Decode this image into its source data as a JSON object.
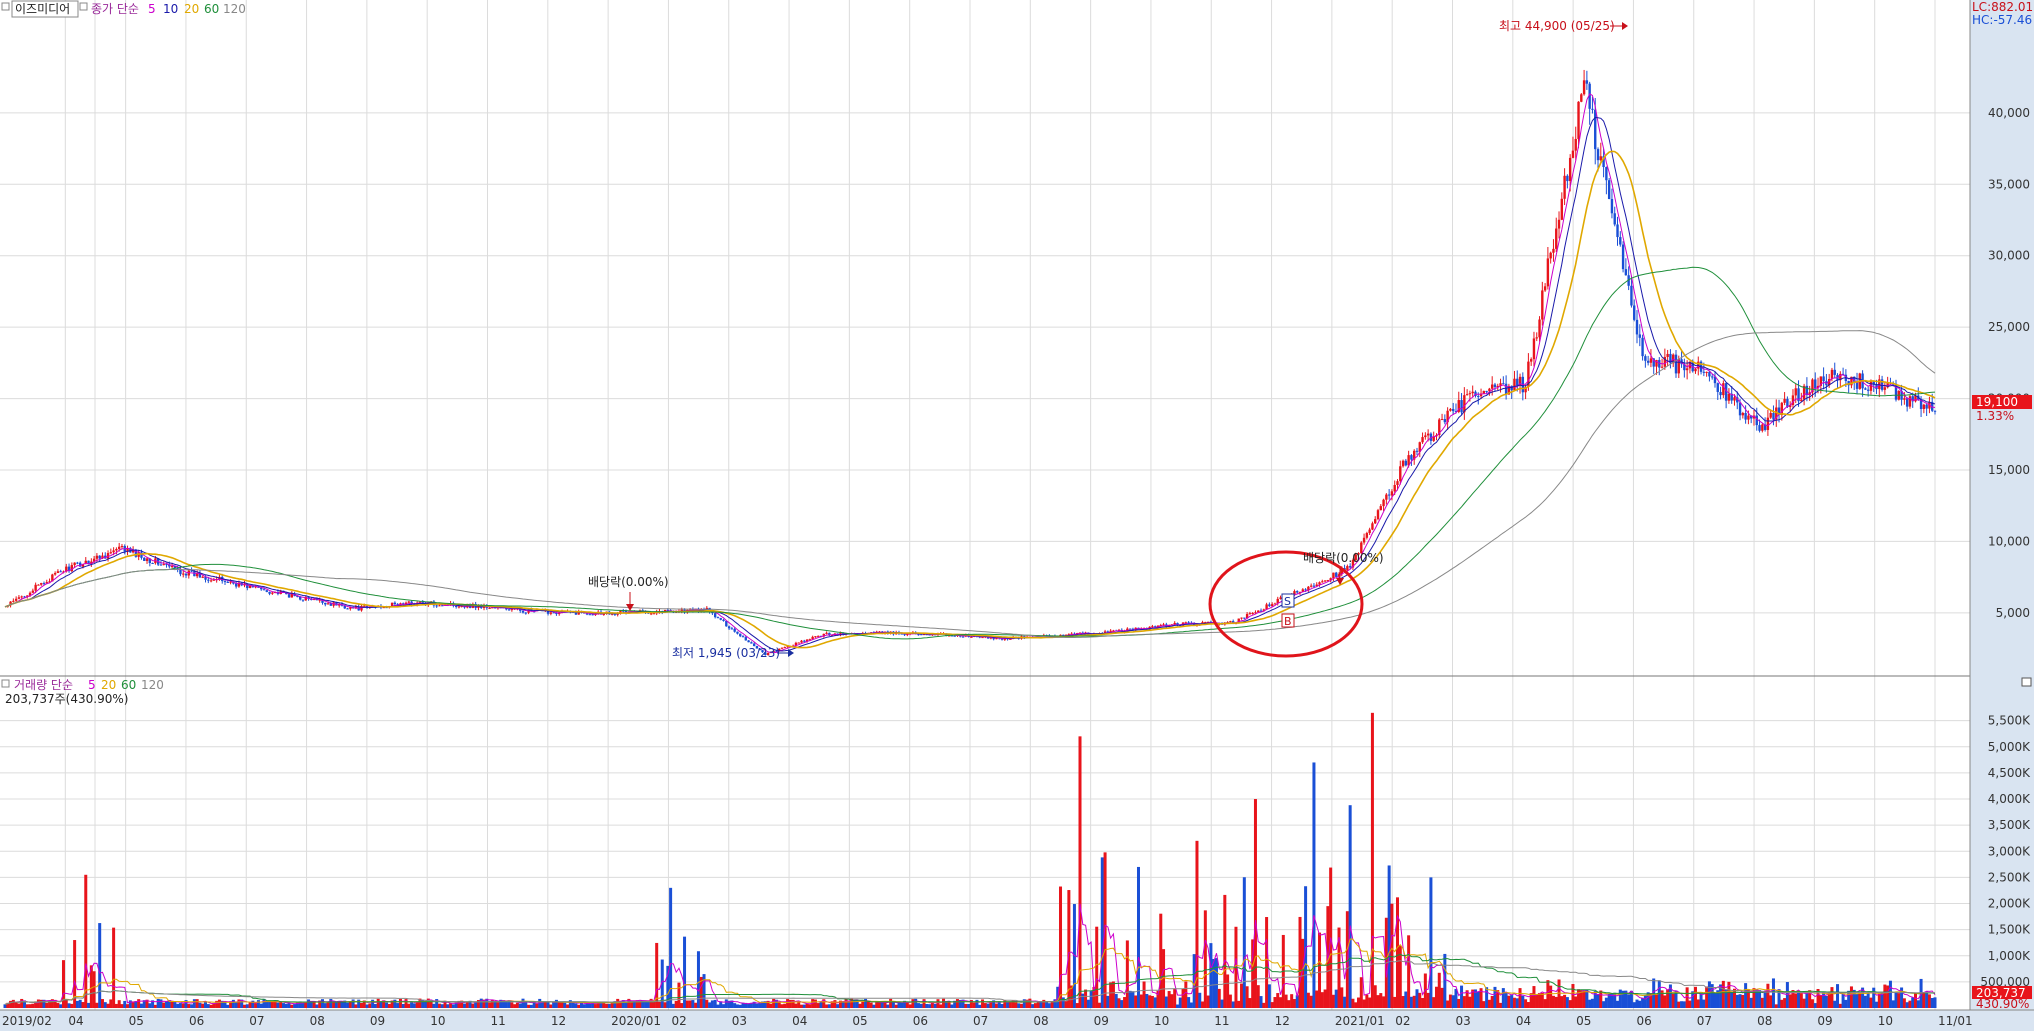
{
  "header": {
    "stock_name": "이즈미디어",
    "price_legend_prefix": "종가 단순",
    "ma_periods": [
      "5",
      "10",
      "20",
      "60",
      "120"
    ],
    "ma_colors": [
      "#cc00cc",
      "#1a1aaa",
      "#e0a800",
      "#1f8f3a",
      "#888888"
    ],
    "lc_label": "LC:882.01",
    "hc_label": "HC:-57.46"
  },
  "volume_header": {
    "legend_prefix": "거래량 단순",
    "ma_periods": [
      "5",
      "20",
      "60",
      "120"
    ],
    "ma_colors": [
      "#cc00cc",
      "#e0a800",
      "#1f8f3a",
      "#888888"
    ],
    "current_volume": "203,737주(430.90%)"
  },
  "annotations": {
    "high": "최고 44,900 (05/25)",
    "low": "최저 1,945 (03/23)",
    "dividend1": "배당락(0.00%)",
    "dividend2": "배당락(0.00%)",
    "signal_s": "S",
    "signal_b": "B"
  },
  "current": {
    "price": "19,100",
    "change": "1.33%",
    "volume": "203,737",
    "volume_pct": "430.90%"
  },
  "colors": {
    "up": "#e8141b",
    "down": "#1a4fd6",
    "grid": "#dcdcdc",
    "axis_bg": "#d9e4f1",
    "highlight": "#e8141b",
    "circle": "#e0141b"
  },
  "chart_data": {
    "type": "candlestick",
    "x_tick_labels": [
      "2019/02",
      "04",
      "05",
      "06",
      "07",
      "08",
      "09",
      "10",
      "11",
      "12",
      "2020/01",
      "02",
      "03",
      "04",
      "05",
      "06",
      "07",
      "08",
      "09",
      "10",
      "11",
      "12",
      "2021/01",
      "02",
      "03",
      "04",
      "05",
      "06",
      "07",
      "08",
      "09",
      "10",
      "11/01"
    ],
    "price_axis": {
      "ticks": [
        "5,000",
        "10,000",
        "15,000",
        "20,000",
        "25,000",
        "30,000",
        "35,000",
        "40,000"
      ],
      "ylim": [
        1000,
        46500
      ]
    },
    "volume_axis": {
      "ticks": [
        "500,000",
        "1,000K",
        "1,500K",
        "2,000K",
        "2,500K",
        "3,000K",
        "3,500K",
        "4,000K",
        "4,500K",
        "5,000K",
        "5,500K"
      ],
      "ylim": [
        0,
        5800000
      ]
    },
    "close_series_monthly": [
      {
        "date": "2019/02",
        "close": 5400
      },
      {
        "date": "2019/03",
        "close": 8000
      },
      {
        "date": "2019/04",
        "close": 9500
      },
      {
        "date": "2019/05",
        "close": 7900
      },
      {
        "date": "2019/06",
        "close": 7000
      },
      {
        "date": "2019/07",
        "close": 6100
      },
      {
        "date": "2019/08",
        "close": 5300
      },
      {
        "date": "2019/09",
        "close": 5700
      },
      {
        "date": "2019/10",
        "close": 5500
      },
      {
        "date": "2019/11",
        "close": 5100
      },
      {
        "date": "2019/12",
        "close": 5000
      },
      {
        "date": "2020/01",
        "close": 5100
      },
      {
        "date": "2020/02",
        "close": 5200
      },
      {
        "date": "2020/03",
        "close": 2100
      },
      {
        "date": "2020/04",
        "close": 3500
      },
      {
        "date": "2020/05",
        "close": 3600
      },
      {
        "date": "2020/06",
        "close": 3500
      },
      {
        "date": "2020/07",
        "close": 3200
      },
      {
        "date": "2020/08",
        "close": 3400
      },
      {
        "date": "2020/09",
        "close": 3700
      },
      {
        "date": "2020/10",
        "close": 4200
      },
      {
        "date": "2020/11",
        "close": 4300
      },
      {
        "date": "2020/12",
        "close": 6300
      },
      {
        "date": "2021/01",
        "close": 8200
      },
      {
        "date": "2021/02",
        "close": 16000
      },
      {
        "date": "2021/03",
        "close": 20000
      },
      {
        "date": "2021/04",
        "close": 21000
      },
      {
        "date": "2021/05",
        "close": 42000
      },
      {
        "date": "2021/06",
        "close": 23000
      },
      {
        "date": "2021/07",
        "close": 22000
      },
      {
        "date": "2021/08",
        "close": 18000
      },
      {
        "date": "2021/09",
        "close": 21500
      },
      {
        "date": "2021/10",
        "close": 21000
      },
      {
        "date": "2021/11",
        "close": 19100
      }
    ],
    "volume_spikes": [
      {
        "date": "2019/03",
        "volume": 2550000
      },
      {
        "date": "2020/01",
        "volume": 2300000
      },
      {
        "date": "2020/08",
        "volume": 5200000
      },
      {
        "date": "2020/09",
        "volume": 2700000
      },
      {
        "date": "2020/10",
        "volume": 3200000
      },
      {
        "date": "2020/11",
        "volume": 4000000
      },
      {
        "date": "2020/12",
        "volume": 4700000
      },
      {
        "date": "2021/01",
        "volume": 5650000
      },
      {
        "date": "2021/02",
        "volume": 2500000
      },
      {
        "date": "2021/11",
        "volume": 203737
      }
    ]
  }
}
